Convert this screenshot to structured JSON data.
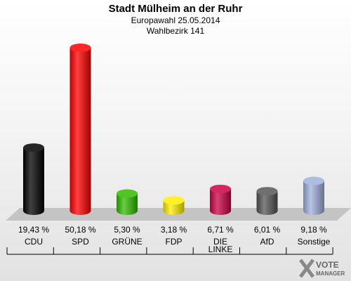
{
  "header": {
    "title": "Stadt Mülheim an der Ruhr",
    "subtitle": "Europawahl 25.05.2014",
    "district": "Wahlbezirk 141"
  },
  "chart_data": {
    "type": "bar",
    "categories": [
      "CDU",
      "SPD",
      "GRÜNE",
      "FDP",
      "DIE LINKE",
      "AfD",
      "Sonstige"
    ],
    "category_lines": [
      [
        "CDU"
      ],
      [
        "SPD"
      ],
      [
        "GRÜNE"
      ],
      [
        "FDP"
      ],
      [
        "DIE",
        "LINKE"
      ],
      [
        "AfD"
      ],
      [
        "Sonstige"
      ]
    ],
    "values": [
      19.43,
      50.18,
      5.3,
      3.18,
      6.71,
      6.01,
      9.18
    ],
    "value_labels": [
      "19,43 %",
      "50,18 %",
      "5,30 %",
      "3,18 %",
      "6,71 %",
      "6,01 %",
      "9,18 %"
    ],
    "colors": [
      "#000000",
      "#ff0000",
      "#33bb00",
      "#ffee00",
      "#cc0044",
      "#555555",
      "#a0b0dd"
    ],
    "ylim": [
      0,
      50.18
    ],
    "grid": false,
    "legend": "none"
  },
  "logo": {
    "line1": "VOTE",
    "line2": "MANAGER"
  }
}
